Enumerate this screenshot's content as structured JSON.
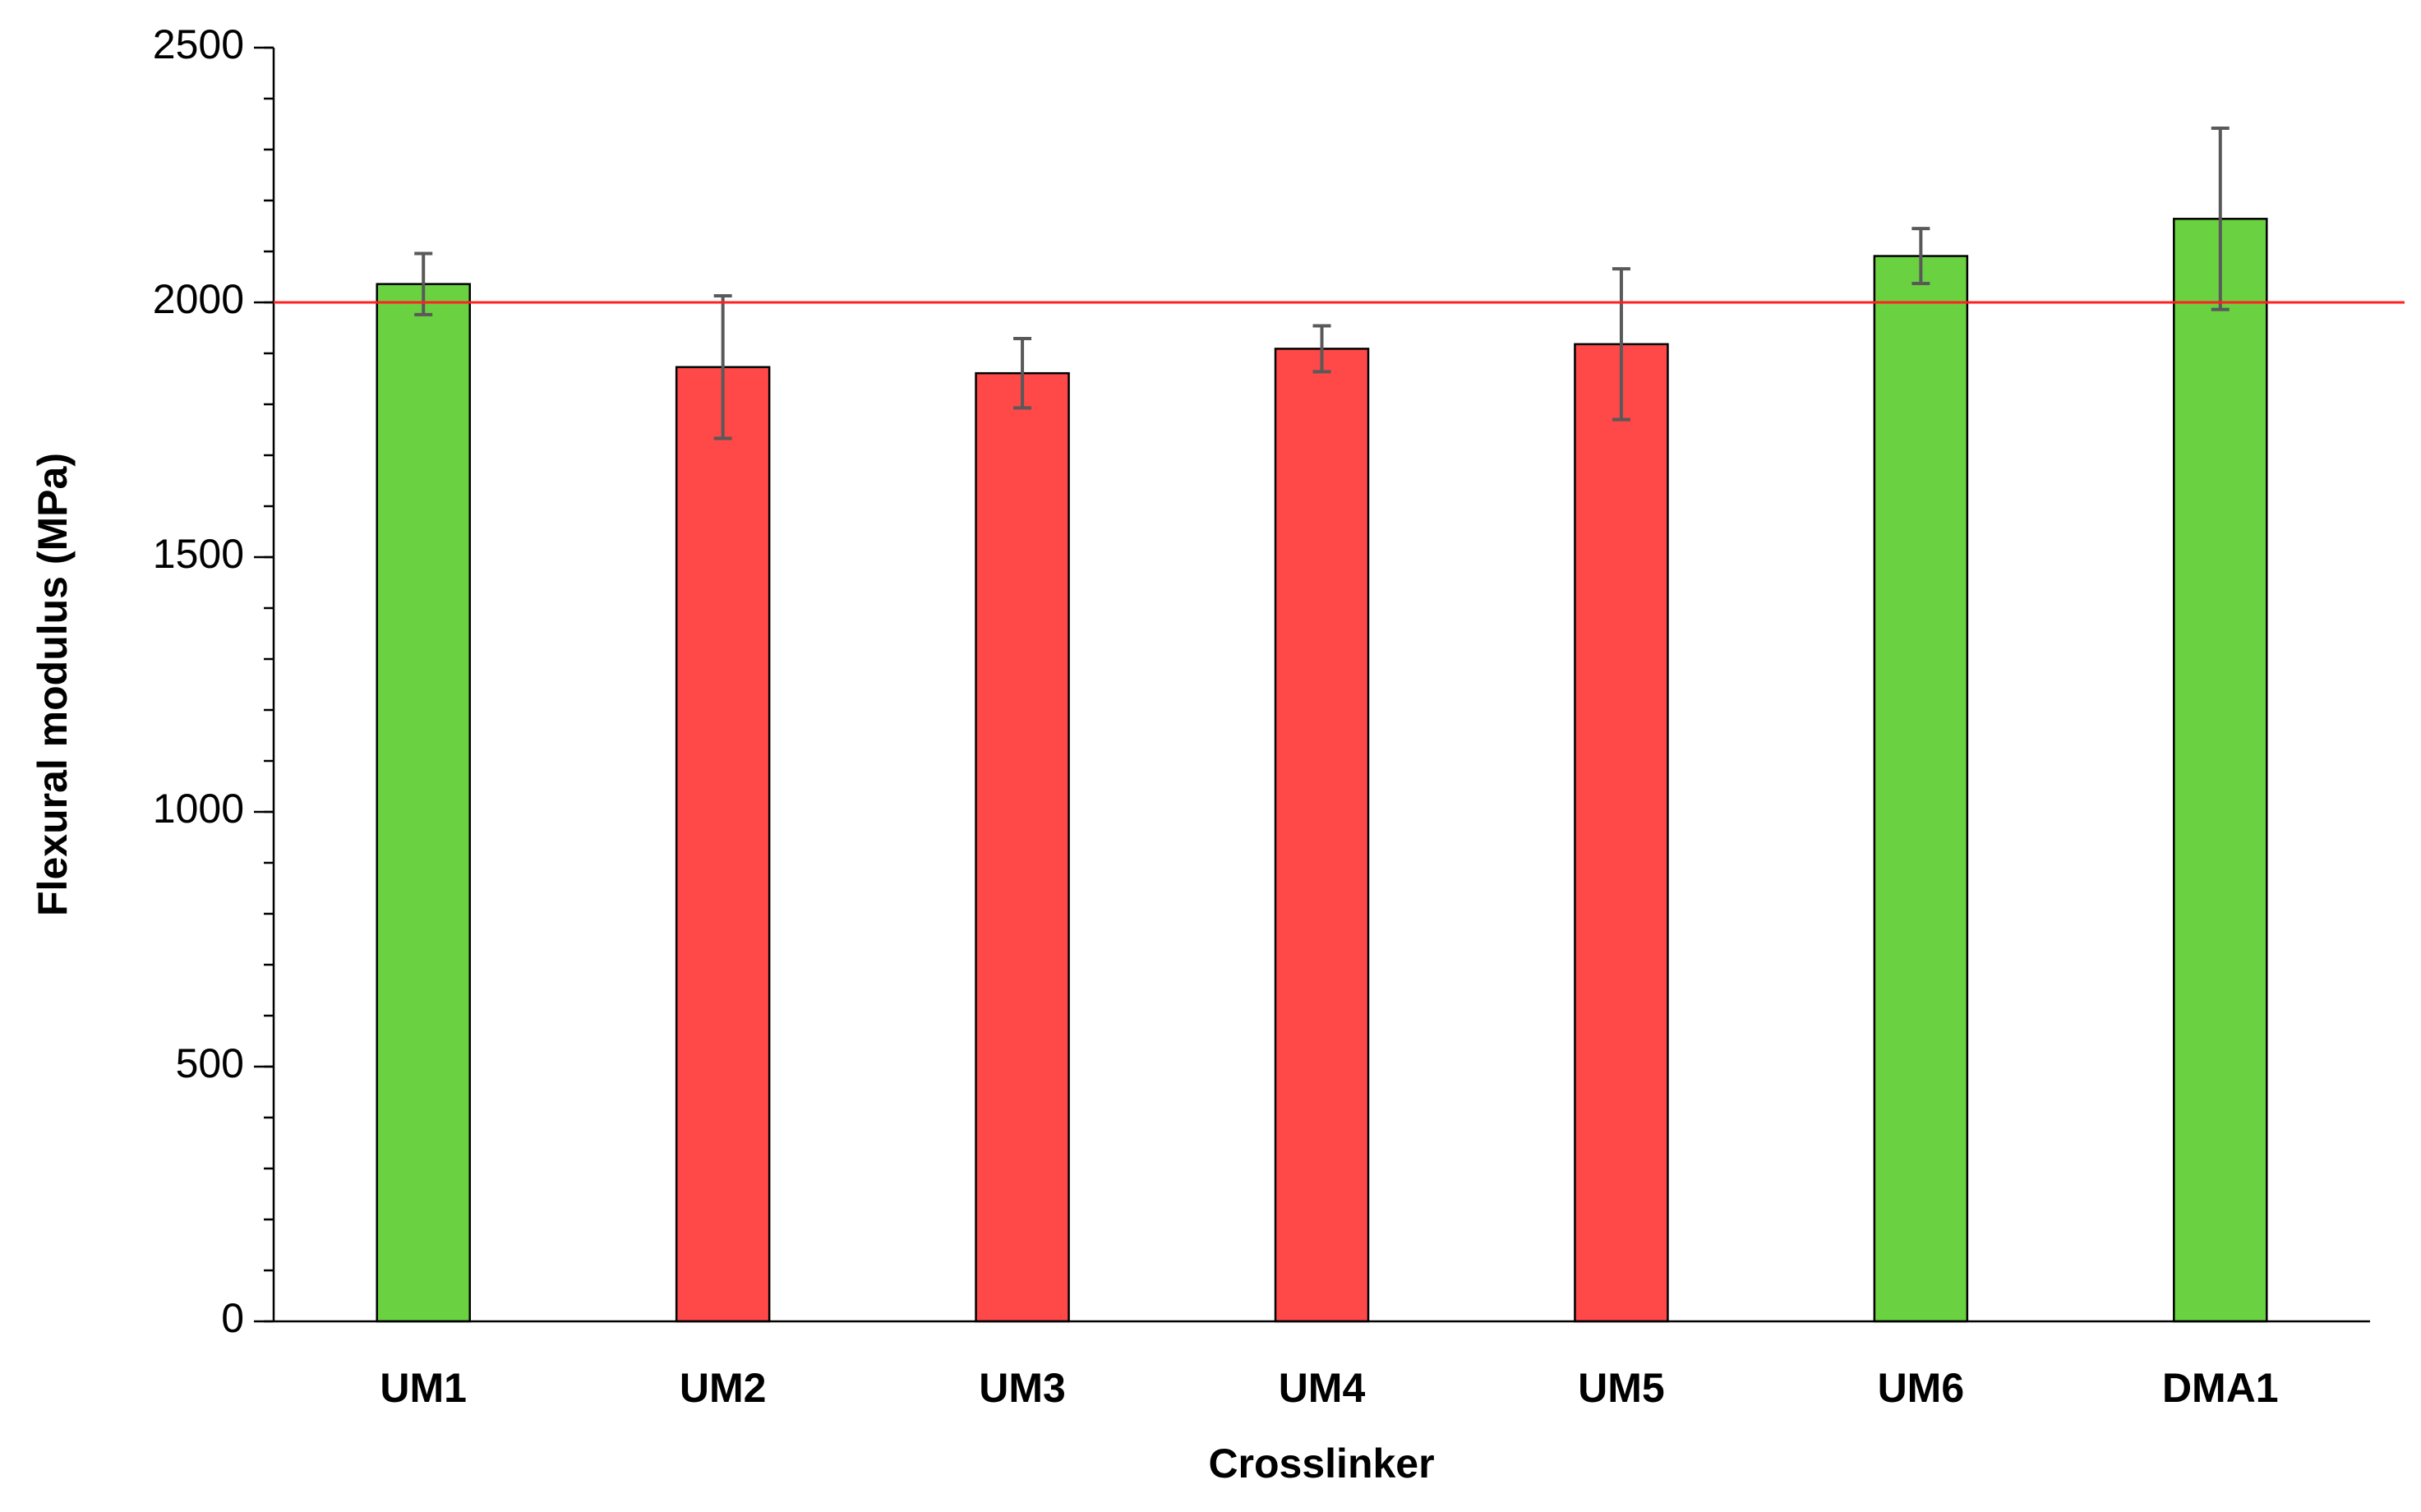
{
  "chart_data": {
    "type": "bar",
    "x_label": "Crosslinker",
    "y_label": "Flexural modulus (MPa)",
    "categories": [
      "UM1",
      "UM2",
      "UM3",
      "UM4",
      "UM5",
      "UM6",
      "DMA1"
    ],
    "values": [
      2036,
      1873,
      1861,
      1909,
      1918,
      2091,
      2164
    ],
    "errors": [
      60,
      140,
      68,
      45,
      148,
      54,
      178
    ],
    "colors": [
      "#6ad240",
      "#ff4848",
      "#ff4848",
      "#ff4848",
      "#ff4848",
      "#6ad240",
      "#6ad240"
    ],
    "error_color": "#595959",
    "reference_line": 2000,
    "reference_color": "#ff2020",
    "ylim": [
      0,
      2500
    ],
    "yticks": [
      0,
      500,
      1000,
      1500,
      2000,
      2500
    ],
    "yminor_step": 100,
    "grid": false
  }
}
